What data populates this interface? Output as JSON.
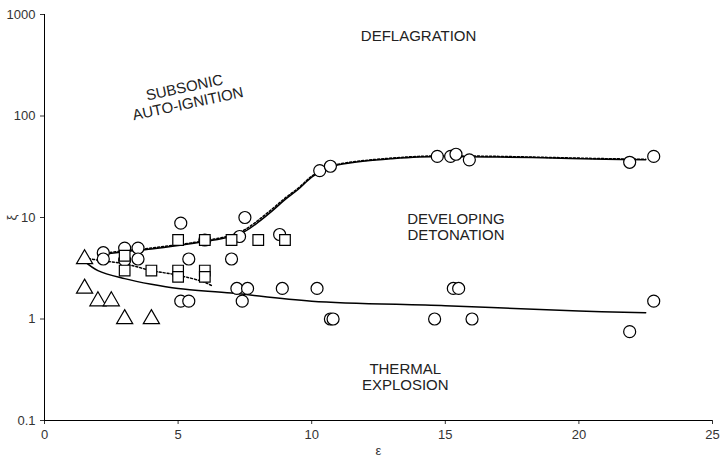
{
  "chart_data": {
    "type": "scatter",
    "x_label": "ε",
    "y_label": "ξ",
    "xlim": [
      0,
      25
    ],
    "xticks": [
      0,
      5,
      10,
      15,
      20,
      25
    ],
    "ylim": [
      0.1,
      1000
    ],
    "yticks": [
      0.1,
      1,
      10,
      100,
      1000
    ],
    "log": "y",
    "grid": false,
    "annotations": [
      {
        "text": "DEFLAGRATION",
        "x": 14.0,
        "y": 620
      },
      {
        "text": "SUBSONIC\nAUTO-IGNITION",
        "x": 5.3,
        "y": 160
      },
      {
        "text": "DEVELOPING\nDETONATION",
        "x": 15.4,
        "y": 8.1
      },
      {
        "text": "THERMAL\nEXPLOSION",
        "x": 13.5,
        "y": 0.27
      }
    ],
    "series": [
      {
        "type": "line",
        "line_style": "solid",
        "color": "#000000",
        "x": [
          2,
          3,
          4,
          5,
          6,
          7,
          7.5,
          8,
          8.5,
          9,
          9.5,
          10,
          10.5,
          11,
          12,
          13,
          14,
          15,
          17,
          19,
          21,
          22.5
        ],
        "values": [
          4.3,
          4.6,
          4.9,
          5.3,
          5.8,
          6.5,
          7.3,
          9,
          11.5,
          15,
          19,
          25,
          30,
          33,
          36,
          38,
          39.5,
          40,
          39.5,
          38.5,
          37.5,
          37
        ]
      },
      {
        "type": "line",
        "line_style": "dotted",
        "color": "#000000",
        "x": [
          2,
          3,
          4,
          5,
          6,
          7,
          7.5,
          8,
          8.5,
          9,
          9.5,
          10,
          10.5,
          11,
          12,
          13,
          14,
          15,
          17,
          19,
          21,
          22.5
        ],
        "values": [
          4.4,
          4.7,
          5.0,
          5.4,
          5.9,
          6.7,
          7.6,
          9.4,
          12,
          15.5,
          19.5,
          25.5,
          30.5,
          33.5,
          36.5,
          38.5,
          40,
          40.5,
          40,
          39,
          38,
          37.5
        ]
      },
      {
        "type": "line",
        "line_style": "solid",
        "color": "#000000",
        "x": [
          1.5,
          2,
          3,
          4,
          5,
          7,
          10,
          15,
          20,
          22.5
        ],
        "values": [
          3.7,
          3.0,
          2.5,
          2.2,
          2.0,
          1.8,
          1.5,
          1.35,
          1.2,
          1.15
        ]
      },
      {
        "type": "line",
        "line_style": "dotted",
        "color": "#000000",
        "x": [
          1.5,
          2,
          3,
          4,
          5,
          6,
          6.3
        ],
        "values": [
          4.0,
          3.8,
          3.5,
          3.0,
          2.7,
          2.3,
          2.1
        ]
      },
      {
        "type": "scatter",
        "marker": "circle",
        "color": "#000000",
        "x": [
          2.2,
          2.2,
          3.0,
          3.5,
          3.0,
          3.5,
          5.1,
          5.4,
          5.1,
          5.4,
          7.0,
          7.2,
          7.5,
          7.4,
          7.6,
          8.8,
          8.9,
          10.2,
          10.3,
          10.7,
          10.7,
          10.8,
          14.6,
          14.7,
          15.2,
          15.3,
          15.4,
          15.5,
          15.9,
          16.0,
          21.9,
          21.9,
          22.8,
          22.8,
          7.3,
          6.0
        ],
        "values": [
          4.5,
          3.9,
          5.0,
          5.0,
          3.8,
          3.9,
          8.8,
          3.9,
          1.5,
          1.5,
          3.9,
          2.0,
          10,
          1.5,
          2.0,
          6.8,
          2.0,
          2.0,
          29,
          32,
          1.0,
          1.0,
          1.0,
          40,
          40,
          2.0,
          42,
          2.0,
          37,
          1.0,
          35,
          0.75,
          40,
          1.5,
          6.5,
          6.0
        ]
      },
      {
        "type": "scatter",
        "marker": "square",
        "color": "#000000",
        "x": [
          3.0,
          4.0,
          5.0,
          5.0,
          6.0,
          6.0,
          5.0,
          6.0,
          7.0,
          8.0,
          9.0,
          3.0
        ],
        "values": [
          3.0,
          3.0,
          3.0,
          2.6,
          3.0,
          2.6,
          6,
          6,
          6,
          6,
          6,
          4.2
        ]
      },
      {
        "type": "scatter",
        "marker": "triangle",
        "color": "#000000",
        "x": [
          1.5,
          1.5,
          2.0,
          2.5,
          3.0,
          4.0
        ],
        "values": [
          3.9,
          2.0,
          1.5,
          1.5,
          1.0,
          1.0
        ]
      }
    ]
  }
}
